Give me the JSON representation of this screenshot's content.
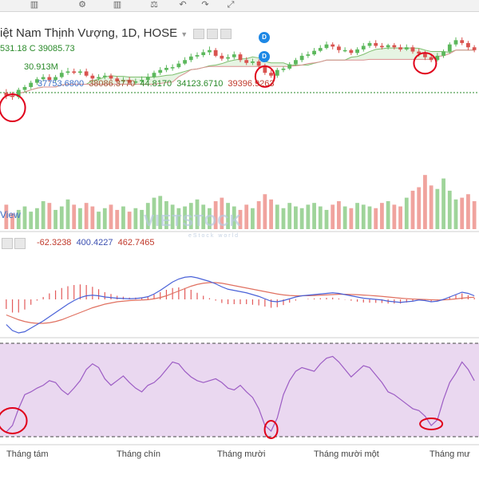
{
  "colors": {
    "up": "#5cb85c",
    "down": "#d9534f",
    "macd": "#4a62d8",
    "signal": "#e07060",
    "rsi": "#9c5cc4",
    "annotation": "#e0001a"
  },
  "toolbar": {
    "icons": [
      "candle-icon",
      "settings-icon",
      "bars-icon",
      "compare-icon",
      "undo-icon",
      "redo-icon",
      "fullscreen-icon"
    ]
  },
  "header": {
    "title": "iệt Nam Thịnh Vượng, 1D, HOSE",
    "ohlc": "531.18  C 39085.73",
    "volume": "30.913M",
    "ichimoku": [
      "37753.6800",
      "38086.3770",
      "44.8170",
      "34123.6710",
      "39396.9263"
    ]
  },
  "dividend_badge": "D",
  "volume_panel": {
    "label": "View"
  },
  "macd_panel": {
    "values": [
      "-62.3238",
      "400.4227",
      "462.7465"
    ]
  },
  "watermark": {
    "brand": "VIETSTOCK",
    "tagline": "eStock world"
  },
  "chart_data": {
    "type": "line",
    "title": "",
    "xlabel": "",
    "ylabel": "",
    "x_tick_labels": [
      "Tháng tám",
      "Tháng chín",
      "Tháng mười",
      "Tháng mười một",
      "Tháng mư"
    ],
    "ylim_price": [
      37800,
      42300
    ],
    "ylim_volume": [
      0,
      32000000
    ],
    "ylim_macd": [
      -600,
      800
    ],
    "ylim_rsi": [
      0,
      100
    ],
    "grid": false,
    "price_candles": {
      "open": [
        38300,
        38100,
        38000,
        38500,
        38700,
        39000,
        39250,
        39400,
        39200,
        39400,
        39700,
        39800,
        39700,
        39800,
        39500,
        39300,
        39400,
        39500,
        39300,
        39100,
        39200,
        39000,
        39100,
        39200,
        39400,
        39700,
        39900,
        40050,
        40100,
        40350,
        40600,
        40850,
        40950,
        41150,
        41300,
        40900,
        40700,
        40800,
        41000,
        40600,
        40400,
        40500,
        40200,
        39700,
        39500,
        39900,
        40000,
        40300,
        40600,
        40900,
        41000,
        41250,
        41450,
        41700,
        41550,
        41300,
        41300,
        41100,
        41350,
        41600,
        41800,
        41600,
        41500,
        41650,
        41500,
        41350,
        41500,
        41200,
        41050,
        40800,
        40600,
        40900,
        41200,
        41700,
        42000,
        41800,
        41500
      ],
      "high": [
        38550,
        38350,
        38650,
        38850,
        39150,
        39400,
        39600,
        39600,
        39550,
        39900,
        40050,
        40000,
        39950,
        40000,
        39650,
        39600,
        39700,
        39650,
        39450,
        39400,
        39400,
        39300,
        39450,
        39650,
        39850,
        40100,
        40250,
        40300,
        40550,
        40800,
        41050,
        41150,
        41350,
        41550,
        41450,
        41100,
        41000,
        41200,
        41150,
        40800,
        40700,
        40650,
        40350,
        39900,
        40050,
        40150,
        40450,
        40750,
        41100,
        41200,
        41450,
        41650,
        41900,
        41850,
        41700,
        41500,
        41400,
        41500,
        41800,
        41950,
        42000,
        41800,
        41750,
        41800,
        41700,
        41700,
        41650,
        41400,
        41250,
        41000,
        41100,
        41350,
        41850,
        42200,
        42200,
        41950,
        41650
      ],
      "low": [
        37850,
        37800,
        37850,
        38300,
        38550,
        38850,
        39100,
        39050,
        39050,
        39300,
        39550,
        39600,
        39550,
        39400,
        39150,
        39150,
        39250,
        39200,
        38950,
        38950,
        38850,
        38850,
        38950,
        39100,
        39300,
        39550,
        39750,
        39850,
        40000,
        40250,
        40450,
        40700,
        40800,
        40950,
        40800,
        40550,
        40550,
        40650,
        40450,
        40250,
        40250,
        40050,
        39550,
        39350,
        39350,
        39750,
        39900,
        40200,
        40450,
        40750,
        40900,
        41150,
        41350,
        41350,
        41100,
        41150,
        40950,
        40950,
        41200,
        41450,
        41450,
        41350,
        41350,
        41350,
        41200,
        41250,
        41050,
        40850,
        40600,
        40450,
        40500,
        40750,
        41050,
        41550,
        41650,
        41300,
        41150
      ],
      "close": [
        38100,
        38000,
        38500,
        38700,
        39000,
        39250,
        39400,
        39200,
        39400,
        39700,
        39800,
        39700,
        39800,
        39500,
        39300,
        39400,
        39500,
        39300,
        39100,
        39200,
        39000,
        39100,
        39200,
        39400,
        39700,
        39900,
        40050,
        40100,
        40350,
        40600,
        40850,
        40950,
        41150,
        41300,
        40900,
        40700,
        40800,
        41000,
        40600,
        40400,
        40500,
        40200,
        39700,
        39500,
        39900,
        40000,
        40300,
        40600,
        40900,
        41000,
        41250,
        41450,
        41700,
        41550,
        41300,
        41300,
        41100,
        41350,
        41600,
        41800,
        41600,
        41500,
        41650,
        41500,
        41350,
        41500,
        41200,
        41050,
        40800,
        40600,
        40900,
        41200,
        41700,
        42000,
        41800,
        41500,
        41300
      ]
    },
    "volume_bars": [
      14,
      9,
      11,
      13,
      10,
      12,
      16,
      15,
      11,
      13,
      17,
      14,
      12,
      15,
      13,
      10,
      12,
      14,
      11,
      13,
      10,
      12,
      11,
      15,
      18,
      19,
      16,
      14,
      12,
      13,
      15,
      17,
      14,
      12,
      16,
      18,
      15,
      13,
      11,
      14,
      12,
      16,
      20,
      17,
      14,
      12,
      15,
      13,
      12,
      14,
      15,
      13,
      11,
      14,
      16,
      13,
      12,
      15,
      14,
      13,
      12,
      15,
      16,
      14,
      13,
      18,
      22,
      24,
      31,
      25,
      23,
      29,
      22,
      17,
      18,
      20,
      16
    ],
    "macd": {
      "macd_line": [
        -420,
        -520,
        -560,
        -540,
        -480,
        -420,
        -360,
        -290,
        -220,
        -150,
        -80,
        -20,
        30,
        60,
        70,
        60,
        40,
        30,
        20,
        15,
        10,
        15,
        25,
        45,
        90,
        150,
        220,
        290,
        340,
        370,
        380,
        360,
        330,
        300,
        260,
        210,
        170,
        150,
        130,
        110,
        80,
        50,
        10,
        -30,
        -40,
        -20,
        10,
        40,
        60,
        70,
        80,
        90,
        100,
        110,
        100,
        80,
        60,
        40,
        20,
        10,
        0,
        -10,
        -30,
        -40,
        -50,
        -40,
        -30,
        -10,
        -20,
        -40,
        -30,
        0,
        40,
        80,
        120,
        100,
        60
      ],
      "signal_line": [
        -260,
        -300,
        -340,
        -370,
        -390,
        -400,
        -400,
        -390,
        -370,
        -340,
        -300,
        -260,
        -220,
        -180,
        -140,
        -110,
        -80,
        -60,
        -40,
        -30,
        -20,
        -15,
        -10,
        -5,
        10,
        30,
        60,
        100,
        140,
        180,
        220,
        250,
        270,
        280,
        280,
        270,
        250,
        230,
        210,
        190,
        170,
        150,
        130,
        110,
        90,
        75,
        65,
        60,
        60,
        62,
        65,
        70,
        75,
        80,
        85,
        85,
        82,
        78,
        72,
        66,
        58,
        50,
        40,
        30,
        20,
        12,
        6,
        2,
        -2,
        -6,
        -10,
        -8,
        -2,
        8,
        20,
        30,
        36
      ]
    },
    "rsi": [
      5,
      12,
      30,
      45,
      48,
      52,
      55,
      60,
      58,
      50,
      45,
      52,
      60,
      72,
      78,
      74,
      62,
      55,
      60,
      65,
      58,
      52,
      48,
      55,
      58,
      64,
      72,
      80,
      78,
      70,
      64,
      60,
      58,
      60,
      62,
      58,
      52,
      50,
      55,
      48,
      42,
      30,
      12,
      6,
      20,
      45,
      60,
      70,
      74,
      72,
      70,
      78,
      84,
      86,
      80,
      72,
      64,
      70,
      76,
      74,
      66,
      58,
      48,
      45,
      40,
      35,
      30,
      28,
      22,
      12,
      18,
      40,
      58,
      68,
      80,
      72,
      60
    ]
  }
}
